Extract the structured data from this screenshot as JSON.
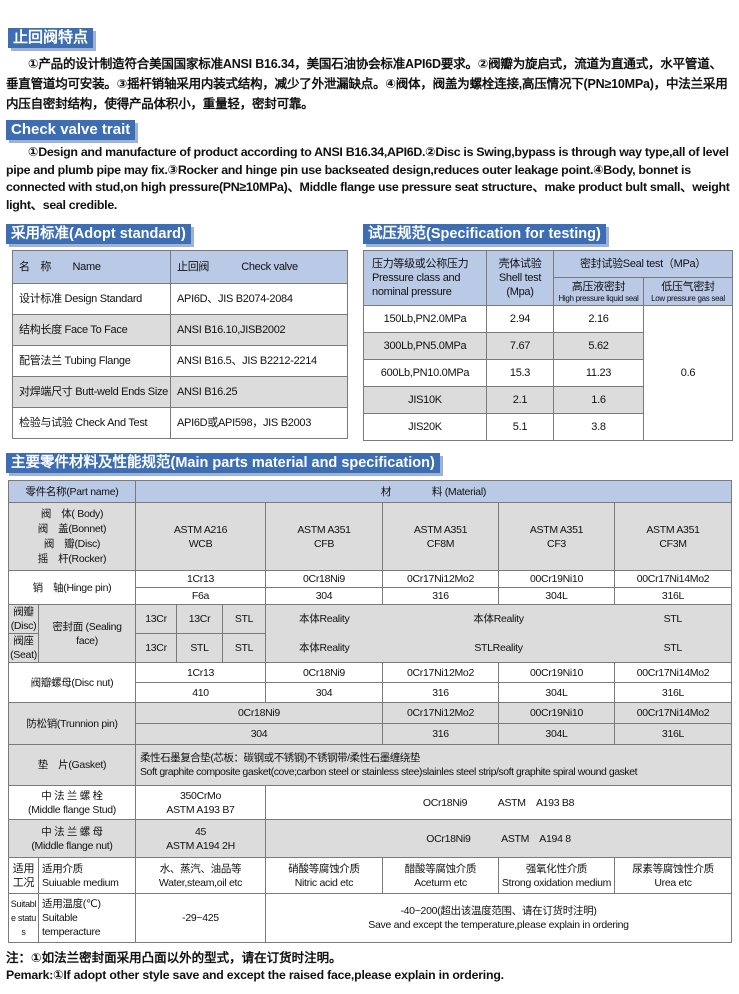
{
  "features": {
    "title_cn": "止回阀特点",
    "text_cn": "①产品的设计制造符合美国国家标准ANSI B16.34，美国石油协会标准API6D要求。②阀瓣为旋启式，流道为直通式，水平管道、垂直管道均可安装。③摇杆销轴采用内装式结构，减少了外泄漏缺点。④阀体，阀盖为螺栓连接,高压情况下(PN≥10MPa)，中法兰采用内压自密封结构，使得产品体积小，重量轻，密封可靠。",
    "title_en": "Check valve trait",
    "text_en": "①Design and manufacture of product according to ANSI B16.34,API6D.②Disc is Swing,bypass is through way type,all of level pipe and plumb pipe may fix.③Rocker and hinge pin use backseated design,reduces outer leakage point.④Body, bonnet is connected with stud,on high pressure(PN≥10MPa)、Middle flange use pressure seat structure、make product bult small、weight light、seal credible."
  },
  "standard": {
    "title": "采用标准(Adopt standard)",
    "header": [
      "名　称　　Name",
      "止回阀　　　Check valve"
    ],
    "rows": [
      [
        "设计标准 Design Standard",
        "API6D、JIS B2074-2084"
      ],
      [
        "结构长度 Face To Face",
        "ANSI B16.10,JISB2002"
      ],
      [
        "配管法兰 Tubing Flange",
        "ANSI B16.5、JIS B2212-2214"
      ],
      [
        "对焊端尺寸 Butt-weld Ends Size",
        "ANSI B16.25"
      ],
      [
        "检验与试验 Check And Test",
        "API6D或API598，JIS B2003"
      ]
    ]
  },
  "testing": {
    "title": "试压规范(Specification for testing)",
    "h_pressure": "压力等级或公称压力 Pressure class and nominal pressure",
    "h_shell": "壳体试验 Shell test (Mpa)",
    "h_seal": "密封试验Seal test（MPa）",
    "h_high_cn": "高压液密封",
    "h_high_en": "High pressure liquid seal",
    "h_low_cn": "低压气密封",
    "h_low_en": "Low pressure gas seal",
    "rows": [
      [
        "150Lb,PN2.0MPa",
        "2.94",
        "2.16"
      ],
      [
        "300Lb,PN5.0MPa",
        "7.67",
        "5.62"
      ],
      [
        "600Lb,PN10.0MPa",
        "15.3",
        "11.23"
      ],
      [
        "JIS10K",
        "2.1",
        "1.6"
      ],
      [
        "JIS20K",
        "5.1",
        "3.8"
      ]
    ],
    "low_value": "0.6"
  },
  "parts": {
    "title": "主要零件材料及性能规范(Main parts material and specification)",
    "h_part": "零件名称(Part name)",
    "h_material": "材　　　　料 (Material)",
    "body_names": [
      "阀　体( Body)",
      "阀　盖(Bonnet)",
      "阀　瓣(Disc)",
      "摇　杆(Rocker)"
    ],
    "body_vals": [
      [
        "ASTM A216",
        "WCB"
      ],
      [
        "ASTM A351",
        "CFB"
      ],
      [
        "ASTM A351",
        "CF8M"
      ],
      [
        "ASTM A351",
        "CF3"
      ],
      [
        "ASTM A351",
        "CF3M"
      ]
    ],
    "hinge_label": "销　轴(Hinge pin)",
    "hinge_r1": [
      "1Cr13",
      "0Cr18Ni9",
      "0Cr17Ni12Mo2",
      "00Cr19Ni10",
      "00Cr17Ni14Mo2"
    ],
    "hinge_r2": [
      "F6a",
      "304",
      "316",
      "304L",
      "316L"
    ],
    "disc_label": "阀瓣(Disc)",
    "seat_label": "阀座(Seat)",
    "seal_label": "密封面 (Sealing face)",
    "seal_r1": [
      "13Cr",
      "13Cr",
      "STL",
      "本体Reality",
      "本体Reality",
      "STL"
    ],
    "seal_r2": [
      "13Cr",
      "STL",
      "STL",
      "本体Reality",
      "STLReality",
      "STL"
    ],
    "discnut_label": "阀瓣螺母(Disc nut)",
    "discnut_r1": [
      "1Cr13",
      "0Cr18Ni9",
      "0Cr17Ni12Mo2",
      "00Cr19Ni10",
      "00Cr17Ni14Mo2"
    ],
    "discnut_r2": [
      "410",
      "304",
      "316",
      "304L",
      "316L"
    ],
    "trunnion_label": "防松销(Trunnion pin)",
    "trunnion_r1": [
      "0Cr18Ni9",
      "0Cr17Ni12Mo2",
      "00Cr19Ni10",
      "00Cr17Ni14Mo2"
    ],
    "trunnion_r2": [
      "304",
      "316",
      "304L",
      "316L"
    ],
    "gasket_label": "垫　片(Gasket)",
    "gasket_cn": "柔性石墨复合垫(芯板：碳钢或不锈钢)不锈钢带/柔性石墨缠绕垫",
    "gasket_en": "Soft graphite composite gasket(cove;carbon steel or stainless stee)slainles steel strip/soft graphite spiral wound gasket",
    "stud_label_cn": "中 法 兰 螺 栓",
    "stud_label_en": "(Middle flange Stud)",
    "stud_a": [
      "350CrMo",
      "ASTM A193 B7"
    ],
    "stud_b": "OCr18Ni9　　　ASTM　A193 B8",
    "nut_label_cn": "中 法 兰 螺 母",
    "nut_label_en": "(Middle flange nut)",
    "nut_a": [
      "45",
      "ASTM A194 2H"
    ],
    "nut_b": "OCr18Ni9　　　ASTM　A194 8",
    "status_cn": "适用 工况",
    "status_en": "Suitable status",
    "medium_label": [
      "适用介质",
      "Suiuable medium"
    ],
    "media": [
      [
        "水、蒸汽、油品等",
        "Water,steam,oil etc"
      ],
      [
        "硝酸等腐蚀介质",
        "Nitric acid etc"
      ],
      [
        "醋酸等腐蚀介质",
        "Aceturm etc"
      ],
      [
        "强氧化性介质",
        "Strong oxidation medium"
      ],
      [
        "尿素等腐蚀性介质",
        "Urea etc"
      ]
    ],
    "temp_label": [
      "适用温度(℃)",
      "Suitable",
      "temperacture"
    ],
    "temp_a": "-29~425",
    "temp_b": [
      "-40~200(超出该温度范围、请在订货时注明)",
      "Save and except the temperature,please explain in ordering"
    ]
  },
  "notes": {
    "cn": "注：①如法兰密封面采用凸面以外的型式，请在订货时注明。",
    "en": "Pemark:①If adopt other style save and except the raised face,please explain in ordering."
  },
  "colors": {
    "title_bar": "#3d6db3",
    "header_row": "#b9c9e6",
    "alt_row": "#dcdcdc"
  }
}
